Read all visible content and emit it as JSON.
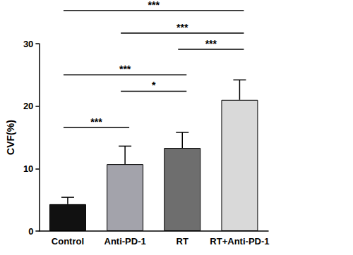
{
  "chart_data": {
    "type": "bar",
    "y_label": "CVF(%)",
    "categories": [
      "Control",
      "Anti-PD-1",
      "RT",
      "RT+Anti-PD-1"
    ],
    "values": [
      4.3,
      10.7,
      13.3,
      21.0
    ],
    "error": [
      1.1,
      2.9,
      2.5,
      3.2
    ],
    "colors": [
      "#111111",
      "#a3a3ab",
      "#6e6e6e",
      "#d9d9d9"
    ],
    "ylim": [
      0,
      30
    ],
    "yticks": [
      0,
      10,
      20,
      30
    ],
    "grid": false,
    "annotations": [
      {
        "from": "Control",
        "to": "RT+Anti-PD-1",
        "y": 35.3,
        "label": "***"
      },
      {
        "from": "Anti-PD-1",
        "to": "RT+Anti-PD-1",
        "y": 31.7,
        "label": "***"
      },
      {
        "from": "RT",
        "to": "RT+Anti-PD-1",
        "y": 29.1,
        "label": "***"
      },
      {
        "from": "Control",
        "to": "RT",
        "y": 25.0,
        "label": "***"
      },
      {
        "from": "Anti-PD-1",
        "to": "RT",
        "y": 22.4,
        "label": "*"
      },
      {
        "from": "Control",
        "to": "Anti-PD-1",
        "y": 16.6,
        "label": "***"
      }
    ]
  }
}
